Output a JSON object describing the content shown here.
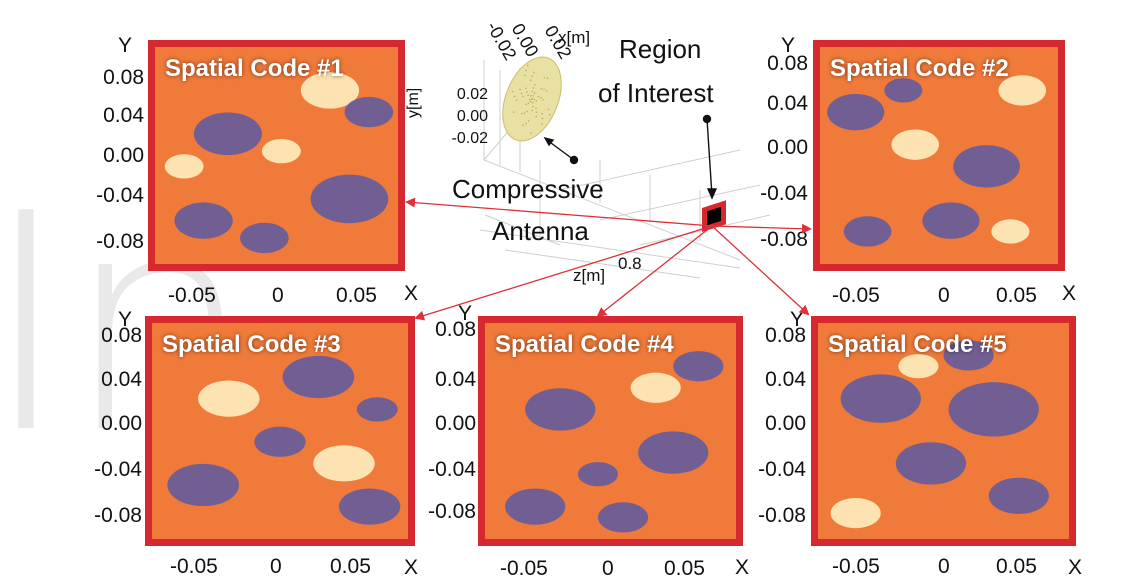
{
  "watermark": "In",
  "antenna_plot": {
    "x_axis_label": "x[m]",
    "x_ticks": [
      "0.02",
      "0.00",
      "-0.02"
    ],
    "y_axis_label": "y[m]",
    "y_ticks": [
      "0.02",
      "0.00",
      "-0.02"
    ],
    "z_axis_label": "z[m]",
    "z_tick": "0.8"
  },
  "labels": {
    "region_line1": "Region",
    "region_line2": "of Interest",
    "compressive_line1": "Compressive",
    "compressive_line2": "Antenna"
  },
  "panel_axes": {
    "y_label": "Y",
    "x_label": "X",
    "y_ticks": [
      "0.08",
      "0.04",
      "0.00",
      "-0.04",
      "-0.08"
    ],
    "x_ticks": [
      "-0.05",
      "0",
      "0.05"
    ]
  },
  "panels": [
    {
      "title": "Spatial Code #1"
    },
    {
      "title": "Spatial Code #2"
    },
    {
      "title": "Spatial Code #3"
    },
    {
      "title": "Spatial Code #4"
    },
    {
      "title": "Spatial Code #5"
    }
  ],
  "colors": {
    "frame": "#d6282f",
    "low": "#5b5ba3",
    "mid": "#f07a3a",
    "high": "#fff6c8",
    "arrow": "#e0303a"
  }
}
